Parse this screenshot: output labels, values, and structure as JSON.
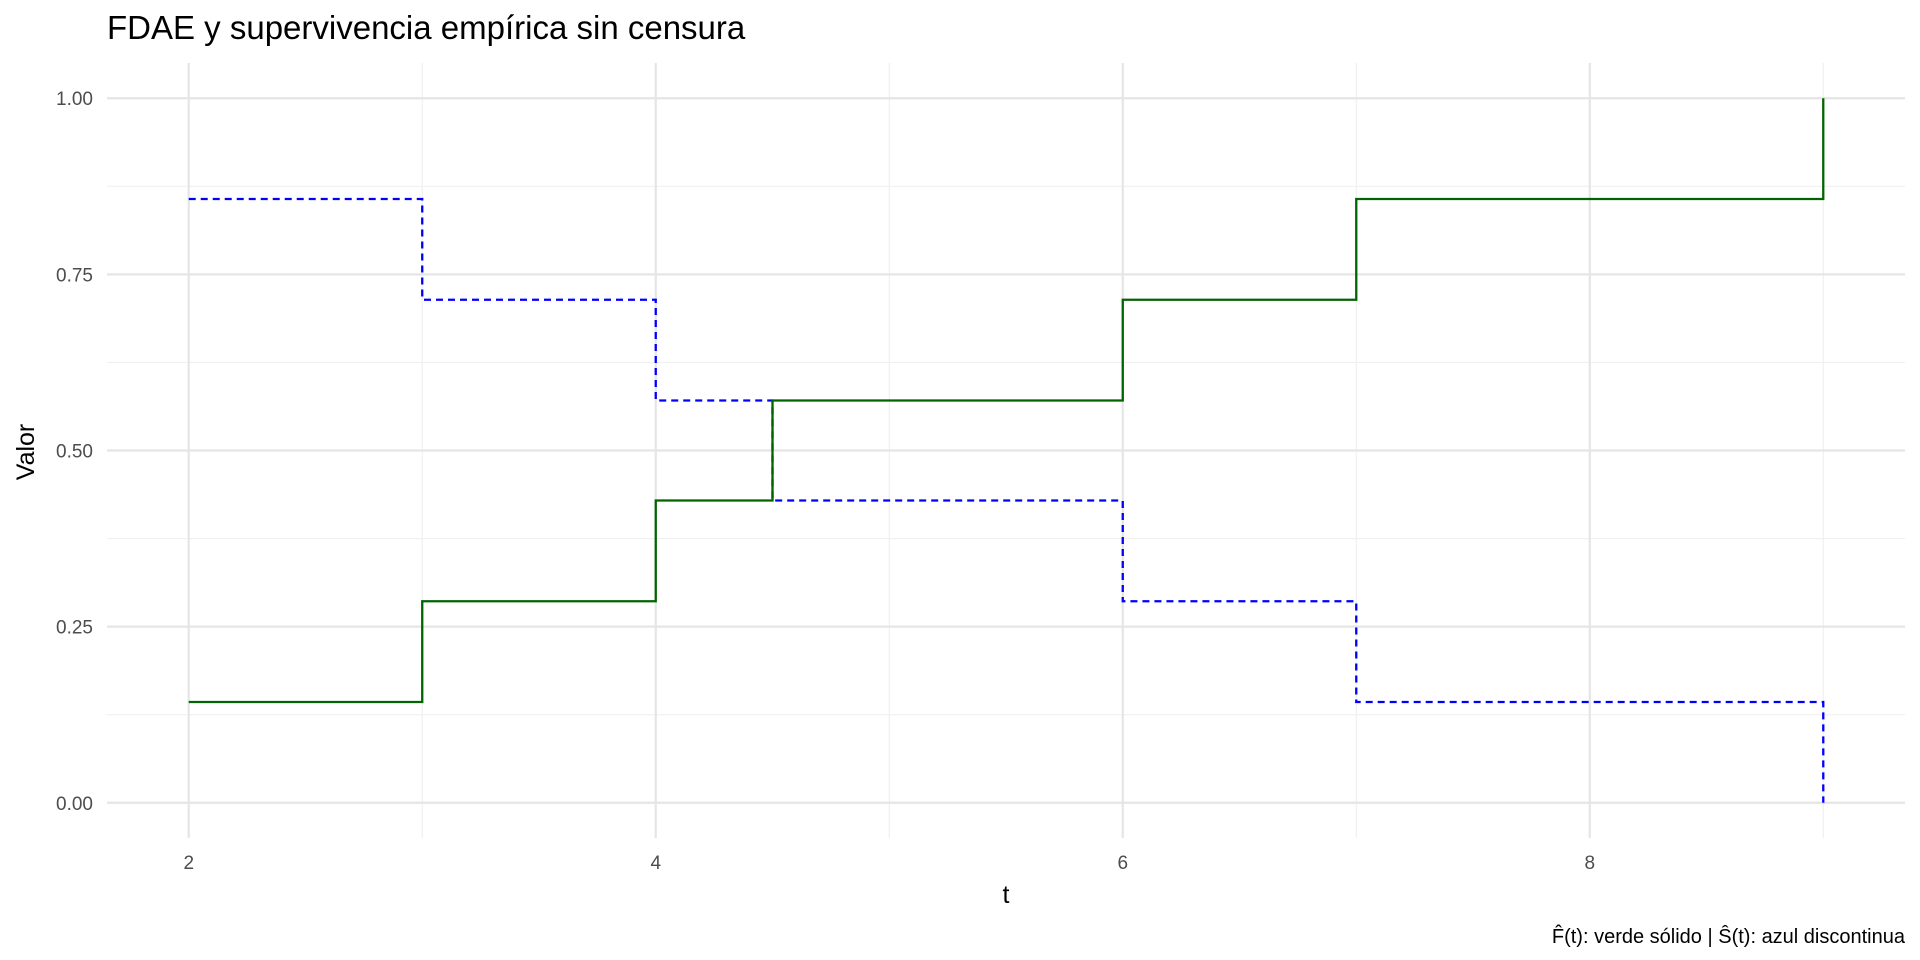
{
  "chart_data": {
    "type": "line",
    "subtype": "step",
    "title": "FDAE y supervivencia empírica sin censura",
    "xlabel": "t",
    "ylabel": "Valor",
    "caption": "F̂(t): verde sólido | Ŝ(t): azul discontinua",
    "xlim": [
      1.65,
      9.35
    ],
    "ylim": [
      -0.05,
      1.05
    ],
    "x_ticks": [
      2,
      4,
      6,
      8
    ],
    "x_tick_labels": [
      "2",
      "4",
      "6",
      "8"
    ],
    "x_minor_ticks": [
      3,
      5,
      7,
      9
    ],
    "y_ticks": [
      0,
      0.25,
      0.5,
      0.75,
      1.0
    ],
    "y_tick_labels": [
      "0.00",
      "0.25",
      "0.50",
      "0.75",
      "1.00"
    ],
    "y_minor_ticks": [
      0.125,
      0.375,
      0.625,
      0.875
    ],
    "grid": true,
    "legend": "none",
    "series": [
      {
        "color": "#006400",
        "dash": "solid",
        "x": [
          2,
          3,
          4,
          4.5,
          6,
          7,
          9
        ],
        "y": [
          0.143,
          0.286,
          0.429,
          0.571,
          0.714,
          0.857,
          1.0
        ]
      },
      {
        "color": "#0000ff",
        "dash": "dashed",
        "x": [
          2,
          3,
          4,
          4.5,
          6,
          7,
          9
        ],
        "y": [
          0.857,
          0.714,
          0.571,
          0.429,
          0.286,
          0.143,
          0.0
        ]
      }
    ]
  }
}
